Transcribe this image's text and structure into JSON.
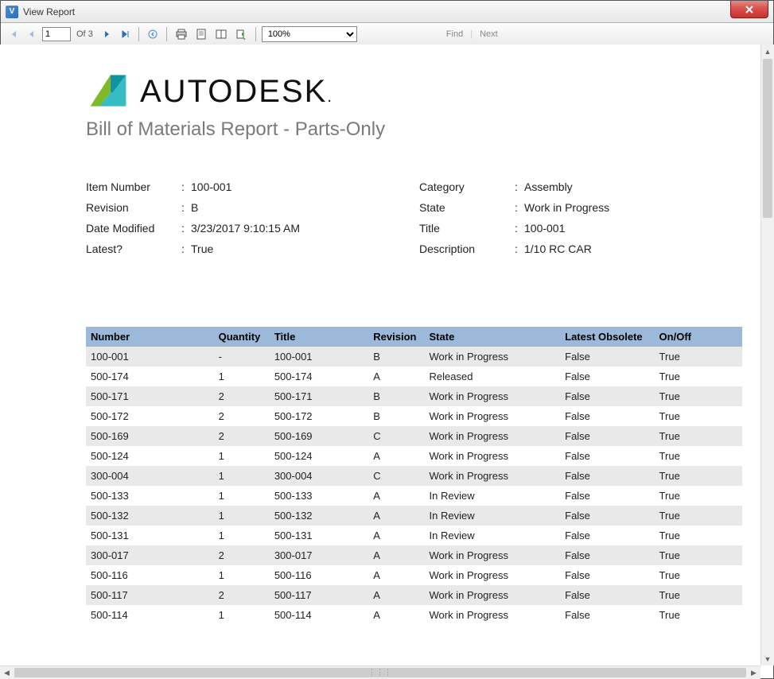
{
  "window": {
    "title": "View Report",
    "app_icon_letter": "V"
  },
  "toolbar": {
    "current_page": "1",
    "of_label": "Of",
    "total_pages": "3",
    "zoom_value": "100%",
    "find_label": "Find",
    "next_label": "Next"
  },
  "report": {
    "logo_text": "AUTODESK",
    "logo_colors": {
      "green": "#7db928",
      "teal": "#1393a0",
      "cyan": "#35bcc4"
    },
    "title": "Bill of Materials Report - Parts-Only",
    "meta_left": [
      {
        "label": "Item Number",
        "value": "100-001"
      },
      {
        "label": "Revision",
        "value": "B"
      },
      {
        "label": "Date Modified",
        "value": "3/23/2017 9:10:15 AM"
      },
      {
        "label": "Latest?",
        "value": "True"
      }
    ],
    "meta_right": [
      {
        "label": "Category",
        "value": "Assembly"
      },
      {
        "label": "State",
        "value": "Work in Progress"
      },
      {
        "label": "Title",
        "value": "100-001"
      },
      {
        "label": "Description",
        "value": "1/10 RC CAR"
      }
    ],
    "table": {
      "header_bg": "#9db9d9",
      "row_alt_bg": "#e9e9e9",
      "columns": [
        "Number",
        "Quantity",
        "Title",
        "Revision",
        "State",
        "Latest Obsolete",
        "On/Off"
      ],
      "rows": [
        [
          "100-001",
          "-",
          "100-001",
          "B",
          "Work in Progress",
          "False",
          "True"
        ],
        [
          "500-174",
          "1",
          "500-174",
          "A",
          "Released",
          "False",
          "True"
        ],
        [
          "500-171",
          "2",
          "500-171",
          "B",
          "Work in Progress",
          "False",
          "True"
        ],
        [
          "500-172",
          "2",
          "500-172",
          "B",
          "Work in Progress",
          "False",
          "True"
        ],
        [
          "500-169",
          "2",
          "500-169",
          "C",
          "Work in Progress",
          "False",
          "True"
        ],
        [
          "500-124",
          "1",
          "500-124",
          "A",
          "Work in Progress",
          "False",
          "True"
        ],
        [
          "300-004",
          "1",
          "300-004",
          "C",
          "Work in Progress",
          "False",
          "True"
        ],
        [
          "500-133",
          "1",
          "500-133",
          "A",
          "In Review",
          "False",
          "True"
        ],
        [
          "500-132",
          "1",
          "500-132",
          "A",
          "In Review",
          "False",
          "True"
        ],
        [
          "500-131",
          "1",
          "500-131",
          "A",
          "In Review",
          "False",
          "True"
        ],
        [
          "300-017",
          "2",
          "300-017",
          "A",
          "Work in Progress",
          "False",
          "True"
        ],
        [
          "500-116",
          "1",
          "500-116",
          "A",
          "Work in Progress",
          "False",
          "True"
        ],
        [
          "500-117",
          "2",
          "500-117",
          "A",
          "Work in Progress",
          "False",
          "True"
        ],
        [
          "500-114",
          "1",
          "500-114",
          "A",
          "Work in Progress",
          "False",
          "True"
        ]
      ]
    }
  }
}
